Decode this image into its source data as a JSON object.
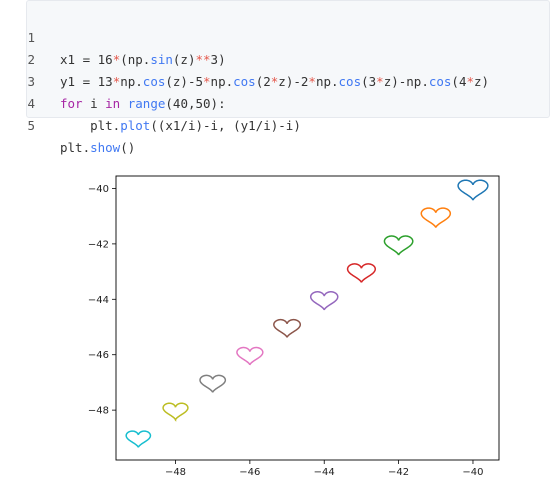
{
  "code": {
    "lines": [
      {
        "n": "1",
        "text": "x1 = 16*(np.sin(z)**3)"
      },
      {
        "n": "2",
        "text": "y1 = 13*np.cos(z)-5*np.cos(2*z)-2*np.cos(3*z)-np.cos(4*z)"
      },
      {
        "n": "3",
        "text": "for i in range(40,50):"
      },
      {
        "n": "4",
        "text": "    plt.plot((x1/i)-i, (y1/i)-i)"
      },
      {
        "n": "5",
        "text": "plt.show()"
      }
    ]
  },
  "chart_data": {
    "type": "line",
    "xlim": [
      -49.6,
      -39.3
    ],
    "ylim": [
      -49.8,
      -39.55
    ],
    "xticks": [
      -48,
      -46,
      -44,
      -42,
      -40
    ],
    "yticks": [
      -40,
      -42,
      -44,
      -46,
      -48
    ],
    "xtick_labels": [
      "−48",
      "−46",
      "−44",
      "−42",
      "−40"
    ],
    "ytick_labels": [
      "−40",
      "−42",
      "−44",
      "−46",
      "−48"
    ],
    "grid": false,
    "series": [
      {
        "i": 40,
        "center": [
          -40,
          -40
        ],
        "color": "#1f77b4"
      },
      {
        "i": 41,
        "center": [
          -41,
          -41
        ],
        "color": "#ff7f0e"
      },
      {
        "i": 42,
        "center": [
          -42,
          -42
        ],
        "color": "#2ca02c"
      },
      {
        "i": 43,
        "center": [
          -43,
          -43
        ],
        "color": "#d62728"
      },
      {
        "i": 44,
        "center": [
          -44,
          -44
        ],
        "color": "#9467bd"
      },
      {
        "i": 45,
        "center": [
          -45,
          -45
        ],
        "color": "#8c564b"
      },
      {
        "i": 46,
        "center": [
          -46,
          -46
        ],
        "color": "#e377c2"
      },
      {
        "i": 47,
        "center": [
          -47,
          -47
        ],
        "color": "#7f7f7f"
      },
      {
        "i": 48,
        "center": [
          -48,
          -48
        ],
        "color": "#bcbd22"
      },
      {
        "i": 49,
        "center": [
          -49,
          -49
        ],
        "color": "#17becf"
      }
    ]
  }
}
